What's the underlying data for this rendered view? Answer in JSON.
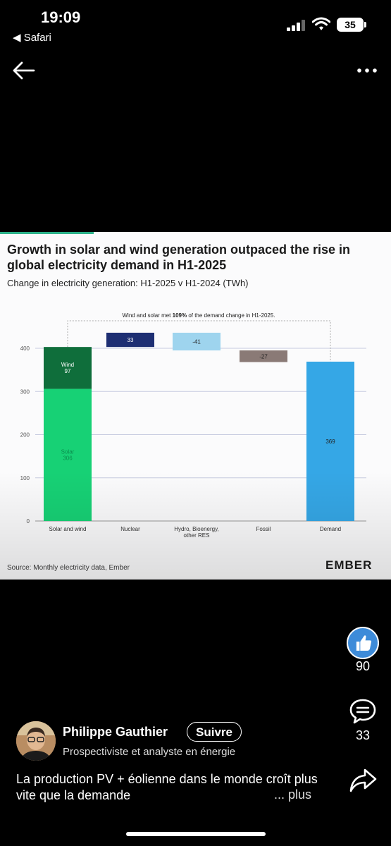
{
  "status_bar": {
    "time": "19:09",
    "back_app": "◀ Safari",
    "battery": "35"
  },
  "card": {
    "title": "Growth in solar and wind generation outpaced the rise in global electricity demand in H1-2025",
    "subtitle": "Change in electricity generation: H1-2025 v H1-2024 (TWh)",
    "source": "Source: Monthly electricity data, Ember",
    "logo": "EMBER"
  },
  "chart_data": {
    "type": "bar",
    "annotation_prefix": "Wind and solar met ",
    "annotation_bold": "109%",
    "annotation_suffix": " of the demand change in H1-2025.",
    "categories": [
      "Solar and wind",
      "Nuclear",
      "Hydro, Bioenergy, other RES",
      "Fossil",
      "Demand"
    ],
    "category_lines": [
      [
        "Solar and wind"
      ],
      [
        "Nuclear"
      ],
      [
        "Hydro, Bioenergy,",
        "other RES"
      ],
      [
        "Fossil"
      ],
      [
        "Demand"
      ]
    ],
    "yticks": [
      0,
      100,
      200,
      300,
      400
    ],
    "ylim": [
      0,
      430
    ],
    "bars": [
      {
        "category": "Solar and wind",
        "label": "Solar",
        "value_label": "306",
        "start": 0,
        "end": 306,
        "color": "#17d175"
      },
      {
        "category": "Solar and wind",
        "label": "Wind",
        "value_label": "97",
        "start": 306,
        "end": 403,
        "color": "#0f6e3b"
      },
      {
        "category": "Nuclear",
        "label": "",
        "value_label": "33",
        "start": 403,
        "end": 436,
        "color": "#1e2f73"
      },
      {
        "category": "Hydro, Bioenergy, other RES",
        "label": "",
        "value_label": "-41",
        "start": 395,
        "end": 436,
        "color": "#9ed4ee"
      },
      {
        "category": "Fossil",
        "label": "",
        "value_label": "-27",
        "start": 368,
        "end": 395,
        "color": "#8a7a76"
      },
      {
        "category": "Demand",
        "label": "",
        "value_label": "369",
        "start": 0,
        "end": 369,
        "color": "#35a7e6"
      }
    ]
  },
  "actions": {
    "likes": "90",
    "comments": "33"
  },
  "author": {
    "name": "Philippe Gauthier",
    "follow": "Suivre",
    "title": "Prospectiviste et analyste en énergie"
  },
  "post": {
    "caption": "La production PV + éolienne dans le monde croît plus vite que la demande",
    "more": "... plus"
  },
  "colors": {
    "like": "#3d8bd9",
    "accent": "#2db28a"
  }
}
